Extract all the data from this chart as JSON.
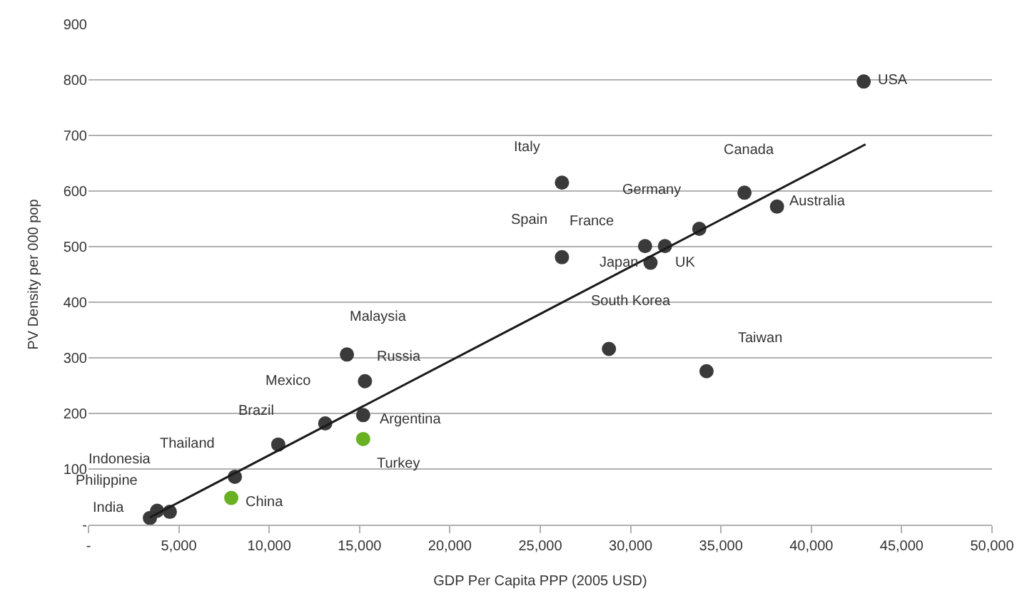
{
  "chart_data": {
    "type": "scatter",
    "xlabel": "GDP Per Capita PPP (2005 USD)",
    "ylabel": "PV Density per 000 pop",
    "xlim": [
      0,
      50000
    ],
    "ylim": [
      0,
      900
    ],
    "xticks": [
      {
        "value": 0,
        "label": "-"
      },
      {
        "value": 5000,
        "label": "5,000"
      },
      {
        "value": 10000,
        "label": "10,000"
      },
      {
        "value": 15000,
        "label": "15,000"
      },
      {
        "value": 20000,
        "label": "20,000"
      },
      {
        "value": 25000,
        "label": "25,000"
      },
      {
        "value": 30000,
        "label": "30,000"
      },
      {
        "value": 35000,
        "label": "35,000"
      },
      {
        "value": 40000,
        "label": "40,000"
      },
      {
        "value": 45000,
        "label": "45,000"
      },
      {
        "value": 50000,
        "label": "50,000"
      }
    ],
    "yticks": [
      {
        "value": 0,
        "label": "-"
      },
      100,
      200,
      300,
      400,
      500,
      600,
      700,
      800,
      900
    ],
    "grid": "y",
    "marker": "circle",
    "series": [
      {
        "x": [
          3400,
          3800,
          4500,
          7900,
          8100,
          10500,
          13100,
          14300,
          15300,
          15200,
          15200,
          26200,
          26200,
          30800,
          31900,
          31100,
          33800,
          36300,
          38100,
          28800,
          34200,
          42900
        ],
        "values": [
          12,
          25,
          23,
          48,
          86,
          144,
          182,
          306,
          258,
          197,
          154,
          615,
          481,
          501,
          501,
          471,
          532,
          597,
          572,
          316,
          276,
          797
        ],
        "colors": [
          "#3a3a3a",
          "#3a3a3a",
          "#3a3a3a",
          "#6ab023",
          "#3a3a3a",
          "#3a3a3a",
          "#3a3a3a",
          "#3a3a3a",
          "#3a3a3a",
          "#3a3a3a",
          "#6ab023",
          "#3a3a3a",
          "#3a3a3a",
          "#3a3a3a",
          "#3a3a3a",
          "#3a3a3a",
          "#3a3a3a",
          "#3a3a3a",
          "#3a3a3a",
          "#3a3a3a",
          "#3a3a3a",
          "#3a3a3a"
        ],
        "value_labels": [
          "India",
          "Philippine",
          "Indonesia",
          "China",
          "Thailand",
          "Brazil",
          "Mexico",
          "Malaysia",
          "Russia",
          "Argentina",
          "Turkey",
          "Italy",
          "Spain",
          "France",
          "UK",
          "Japan",
          "Germany",
          "Canada",
          "Australia",
          "South Korea",
          "Taiwan",
          "USA"
        ]
      },
      {
        "type": "line",
        "x": [
          3400,
          43000
        ],
        "values": [
          13,
          684
        ],
        "color": "#1a1a1a",
        "marker": "none",
        "line_style": "solid"
      }
    ]
  }
}
